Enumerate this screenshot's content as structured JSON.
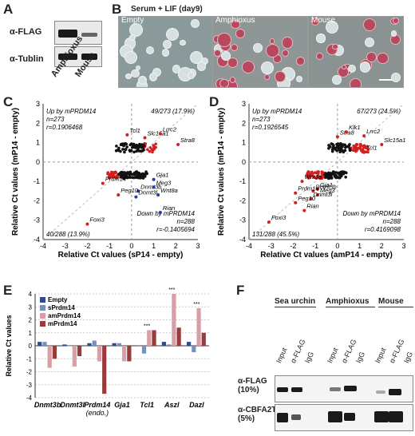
{
  "panelA": {
    "label": "A",
    "rows": [
      "α-FLAG",
      "α-Tublin"
    ],
    "lanes": [
      "Amphioxus",
      "Mouse"
    ]
  },
  "panelB": {
    "label": "B",
    "title": "Serum + LIF (day9)",
    "images": [
      "Empty",
      "Amphioxus",
      "Mouse"
    ]
  },
  "panelC": {
    "label": "C",
    "up_text": [
      "Up by mPRDM14",
      "n=273",
      "r=0.1906468"
    ],
    "up_frac": "49/273 (17.9%)",
    "down_text": [
      "Down by mPRDM14",
      "n=288",
      "r=-0.1405694"
    ],
    "down_frac": "40/288 (13.9%)",
    "xlabel": "Relative Ct values (sP14 - empty)",
    "ylabel": "Relative Ct values (mP14 - empty)",
    "genes": [
      "Tcl1",
      "Slc15a1",
      "Lrrc2",
      "Stra8",
      "Gja1",
      "Wnt8a",
      "Dnmt3b",
      "Dnmt3l",
      "Meg3",
      "Prdm14",
      "Peg10",
      "Rian",
      "Foxi3"
    ]
  },
  "panelD": {
    "label": "D",
    "up_text": [
      "Up by mPRDM14",
      "n=273",
      "r=0.1926545"
    ],
    "up_frac": "67/273 (24.5%)",
    "down_text": [
      "Down by mPRDM14",
      "n=288",
      "r=0.4169098"
    ],
    "down_frac": "131/288 (45.5%)",
    "xlabel": "Relative Ct values (amP14 - empty)",
    "ylabel": "Relative Ct values (mP14 - empty)",
    "genes": [
      "Stra8",
      "Klk1",
      "Lrrc2",
      "Slc15a1",
      "Tcl1",
      "Wnt8a",
      "Gja1",
      "Dnmt3b",
      "Meg3",
      "Dnmt3l",
      "Prdm14",
      "Peg10",
      "Rian",
      "Foxi3"
    ]
  },
  "panelE": {
    "label": "E",
    "ylabel": "Relative Ct values",
    "legend": [
      "Empty",
      "sPrdm14",
      "amPrdm14",
      "mPrdm14"
    ],
    "sig": "***"
  },
  "panelF": {
    "label": "F",
    "groups": [
      "Sea urchin",
      "Amphioxus",
      "Mouse"
    ],
    "lanes": [
      "Input",
      "α-FLAG",
      "IgG"
    ],
    "rows": [
      "α-FLAG\n(10%)",
      "α-CBFA2T2\n(5%)"
    ]
  },
  "chart_data": [
    {
      "panel": "C",
      "type": "scatter",
      "xlabel": "Relative Ct values (sP14 - empty)",
      "ylabel": "Relative Ct values (mP14 - empty)",
      "xlim": [
        -4,
        3
      ],
      "ylim": [
        -4,
        3
      ],
      "labeled_points": [
        {
          "name": "Tcl1",
          "x": -0.2,
          "y": 1.4
        },
        {
          "name": "Slc15a1",
          "x": 0.6,
          "y": 1.25
        },
        {
          "name": "Lrrc2",
          "x": 1.3,
          "y": 1.45
        },
        {
          "name": "Stra8",
          "x": 2.1,
          "y": 0.9
        },
        {
          "name": "Gja1",
          "x": 1.0,
          "y": -0.9
        },
        {
          "name": "Wnt8a",
          "x": 1.2,
          "y": -1.7
        },
        {
          "name": "Dnmt3b",
          "x": 0.3,
          "y": -1.5
        },
        {
          "name": "Dnmt3l",
          "x": 0.2,
          "y": -1.8
        },
        {
          "name": "Meg3",
          "x": 1.0,
          "y": -1.3
        },
        {
          "name": "Prdm14",
          "x": -1.3,
          "y": -1.1
        },
        {
          "name": "Peg10",
          "x": -0.6,
          "y": -1.7
        },
        {
          "name": "Rian",
          "x": 1.3,
          "y": -2.6
        },
        {
          "name": "Foxi3",
          "x": -2.0,
          "y": -3.2
        }
      ]
    },
    {
      "panel": "D",
      "type": "scatter",
      "xlabel": "Relative Ct values (amP14 - empty)",
      "ylabel": "Relative Ct values (mP14 - empty)",
      "xlim": [
        -4,
        3
      ],
      "ylim": [
        -4,
        3
      ],
      "labeled_points": [
        {
          "name": "Stra8",
          "x": 0.0,
          "y": 1.3
        },
        {
          "name": "Klk1",
          "x": 0.4,
          "y": 1.55
        },
        {
          "name": "Lrrc2",
          "x": 1.2,
          "y": 1.35
        },
        {
          "name": "Slc15a1",
          "x": 2.0,
          "y": 0.9
        },
        {
          "name": "Tcl1",
          "x": 1.2,
          "y": 0.5
        },
        {
          "name": "Wnt8a",
          "x": -1.6,
          "y": -1.0
        },
        {
          "name": "Gja1",
          "x": -0.9,
          "y": -1.4
        },
        {
          "name": "Dnmt3b",
          "x": -1.1,
          "y": -1.5
        },
        {
          "name": "Meg3",
          "x": -0.9,
          "y": -1.7
        },
        {
          "name": "Dnmt3l",
          "x": -1.2,
          "y": -1.9
        },
        {
          "name": "Prdm14",
          "x": -1.9,
          "y": -1.6
        },
        {
          "name": "Peg10",
          "x": -1.9,
          "y": -2.1
        },
        {
          "name": "Rian",
          "x": -1.5,
          "y": -2.5
        },
        {
          "name": "Foxi3",
          "x": -3.1,
          "y": -3.1
        }
      ]
    },
    {
      "panel": "E",
      "type": "bar",
      "categories": [
        "Dnmt3b",
        "Dnmt3l",
        "Prdm14\n(endo.)",
        "Gja1",
        "Tcl1",
        "Aszl",
        "Dazl"
      ],
      "ylim": [
        -4,
        4
      ],
      "series": [
        {
          "name": "Empty",
          "values": [
            0.3,
            0.1,
            0.2,
            0.2,
            0.0,
            0.3,
            0.3
          ]
        },
        {
          "name": "sPrdm14",
          "values": [
            0.3,
            0.0,
            0.4,
            0.2,
            -0.6,
            0.1,
            -0.5
          ]
        },
        {
          "name": "amPrdm14",
          "values": [
            -1.7,
            -1.6,
            -1.2,
            -1.2,
            1.2,
            4.0,
            2.9
          ]
        },
        {
          "name": "mPrdm14",
          "values": [
            -1.0,
            -0.8,
            -3.7,
            -1.2,
            1.2,
            1.4,
            1.0
          ]
        }
      ]
    }
  ]
}
